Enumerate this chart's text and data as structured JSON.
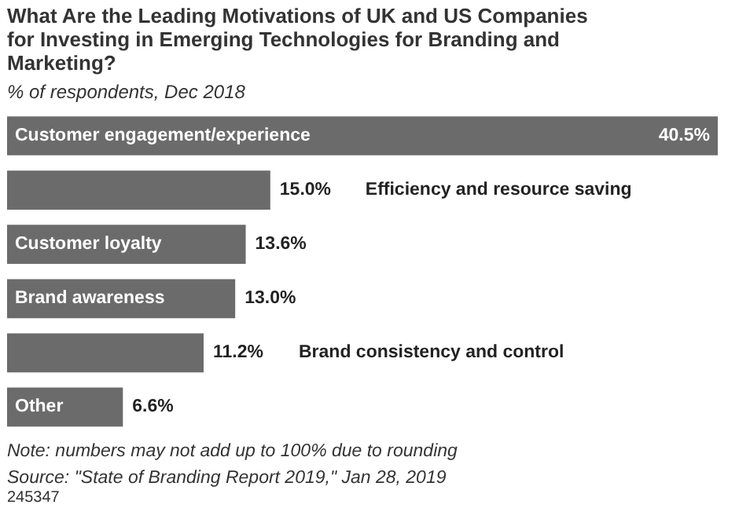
{
  "chart_data": {
    "type": "bar",
    "orientation": "horizontal",
    "title": "What Are the Leading Motivations of UK and US Companies for Investing in Emerging Technologies for Branding and Marketing?",
    "subtitle": "% of respondents, Dec 2018",
    "categories": [
      "Customer engagement/experience",
      "Efficiency and resource saving",
      "Customer loyalty",
      "Brand awareness",
      "Brand consistency and control",
      "Other"
    ],
    "values": [
      40.5,
      15.0,
      13.6,
      13.0,
      11.2,
      6.6
    ],
    "value_labels": [
      "40.5%",
      "15.0%",
      "13.6%",
      "13.0%",
      "11.2%",
      "6.6%"
    ],
    "color": "#6b6b6b",
    "grid": false,
    "annotations": [
      "Note: numbers may not add up to 100% due to rounding",
      "Source: \"State of Branding Report 2019,\" Jan 28, 2019",
      "245347"
    ]
  }
}
